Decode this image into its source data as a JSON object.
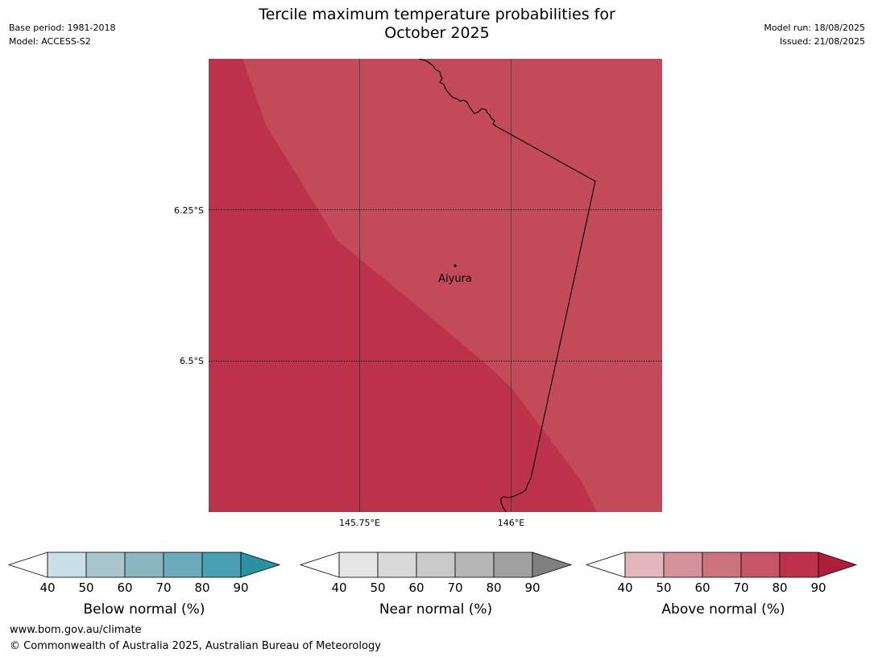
{
  "title_line1": "Tercile maximum temperature probabilities for",
  "title_line2": "October 2025",
  "meta_left": [
    "Base period: 1981-2018",
    "Model: ACCESS-S2"
  ],
  "meta_right": [
    "Model run: 18/08/2025",
    "Issued: 21/08/2025"
  ],
  "map": {
    "lat_labels": [
      "6.25°S",
      "6.5°S"
    ],
    "lon_labels": [
      "145.75°E",
      "146°E"
    ],
    "place_label": "Aiyura",
    "colors": {
      "above_80": "#bd324b",
      "above_70_80": "#c24a59",
      "border": "#000000"
    }
  },
  "colorbars": [
    {
      "label": "Below normal (%)",
      "ticks": [
        "40",
        "50",
        "60",
        "70",
        "80",
        "90"
      ],
      "colors": [
        "#ffffff",
        "#c8e0e6",
        "#a8c6cc",
        "#8ab6c2",
        "#6cacba",
        "#48a0b0",
        "#2b90a0"
      ]
    },
    {
      "label": "Near normal (%)",
      "ticks": [
        "40",
        "50",
        "60",
        "70",
        "80",
        "90"
      ],
      "colors": [
        "#ffffff",
        "#e6e6e6",
        "#d8d8d8",
        "#c9c9c9",
        "#b6b6b6",
        "#a0a0a0",
        "#808080"
      ]
    },
    {
      "label": "Above normal (%)",
      "ticks": [
        "40",
        "50",
        "60",
        "70",
        "80",
        "90"
      ],
      "colors": [
        "#ffffff",
        "#e2b7bd",
        "#d6929a",
        "#cc747d",
        "#c65466",
        "#bd324b",
        "#ad1e3b"
      ]
    }
  ],
  "footer": {
    "url": "www.bom.gov.au/climate",
    "copyright": "© Commonwealth of Australia 2025, Australian Bureau of Meteorology"
  }
}
